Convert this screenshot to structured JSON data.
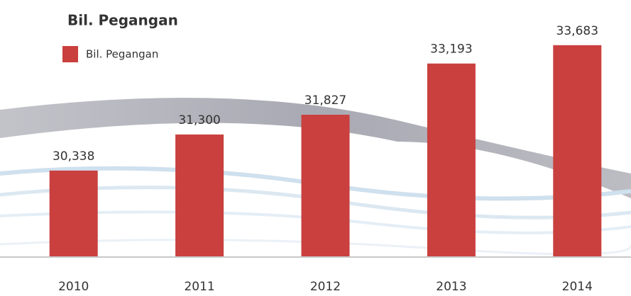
{
  "chart_data": {
    "type": "bar",
    "title": "Bil. Pegangan",
    "categories": [
      "2010",
      "2011",
      "2012",
      "2013",
      "2014"
    ],
    "series": [
      {
        "name": "Bil. Pegangan",
        "color": "#c9403e",
        "values": [
          30338,
          31300,
          31827,
          33193,
          33683
        ],
        "value_labels": [
          "30,338",
          "31,300",
          "31,827",
          "33,193",
          "33,683"
        ]
      }
    ],
    "ylim": [
      28050,
      34000
    ],
    "legend": "top-left"
  }
}
